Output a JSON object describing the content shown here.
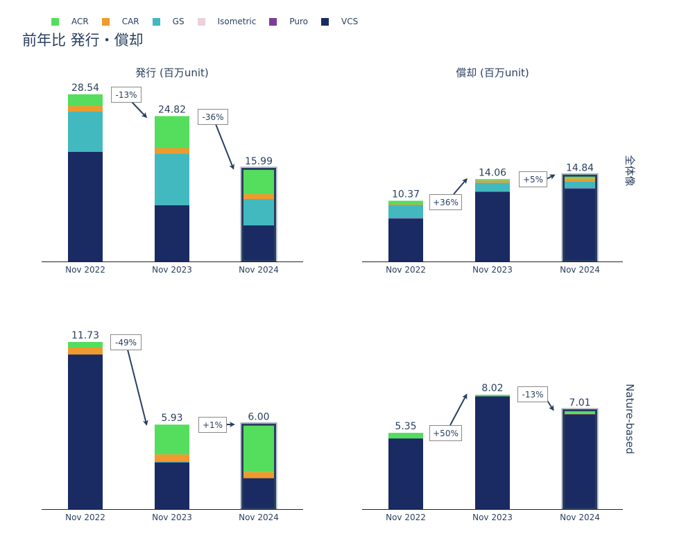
{
  "title": "前年比 発行・償却",
  "legend": [
    {
      "name": "ACR",
      "color": "#55dd5e"
    },
    {
      "name": "CAR",
      "color": "#ef9a2e"
    },
    {
      "name": "GS",
      "color": "#41b9bf"
    },
    {
      "name": "Isometric",
      "color": "#ead2da"
    },
    {
      "name": "Puro",
      "color": "#7c3d9b"
    },
    {
      "name": "VCS",
      "color": "#1a2a63"
    }
  ],
  "colors": {
    "text": "#2a3f5f",
    "axis": "#222222",
    "arrow": "#2a3f5f",
    "highlight_border": "#2a3f5f"
  },
  "chart_data": [
    {
      "type": "bar",
      "stacked": true,
      "title": "発行 (百万unit)",
      "row_label": "",
      "categories": [
        "Nov 2022",
        "Nov 2023",
        "Nov 2024"
      ],
      "totals": [
        "28.54",
        "24.82",
        "15.99"
      ],
      "changes": [
        "-13%",
        "-36%"
      ],
      "highlight": "Nov 2024",
      "series": [
        {
          "name": "VCS",
          "values": [
            18.71,
            9.62,
            6.16
          ]
        },
        {
          "name": "Puro",
          "values": [
            0,
            0,
            0
          ]
        },
        {
          "name": "Isometric",
          "values": [
            0,
            0,
            0
          ]
        },
        {
          "name": "GS",
          "values": [
            6.87,
            8.79,
            4.5
          ]
        },
        {
          "name": "CAR",
          "values": [
            0.95,
            0.95,
            0.83
          ]
        },
        {
          "name": "ACR",
          "values": [
            2.01,
            5.46,
            4.5
          ]
        }
      ]
    },
    {
      "type": "bar",
      "stacked": true,
      "title": "償却 (百万unit)",
      "row_label": "全体像",
      "categories": [
        "Nov 2022",
        "Nov 2023",
        "Nov 2024"
      ],
      "totals": [
        "10.37",
        "14.06",
        "14.84"
      ],
      "changes": [
        "+36%",
        "+5%"
      ],
      "highlight": "Nov 2024",
      "series": [
        {
          "name": "VCS",
          "values": [
            7.33,
            11.91,
            12.43
          ]
        },
        {
          "name": "Puro",
          "values": [
            0.06,
            0,
            0.06
          ]
        },
        {
          "name": "Isometric",
          "values": [
            0,
            0,
            0
          ]
        },
        {
          "name": "GS",
          "values": [
            2.26,
            1.55,
            1.21
          ]
        },
        {
          "name": "CAR",
          "values": [
            0.12,
            0.36,
            0.48
          ]
        },
        {
          "name": "ACR",
          "values": [
            0.6,
            0.24,
            0.66
          ]
        }
      ]
    },
    {
      "type": "bar",
      "stacked": true,
      "title": "",
      "row_label": "",
      "categories": [
        "Nov 2022",
        "Nov 2023",
        "Nov 2024"
      ],
      "totals": [
        "11.73",
        "5.93",
        "6.00"
      ],
      "changes": [
        "-49%",
        "+1%"
      ],
      "highlight": "Nov 2024",
      "series": [
        {
          "name": "VCS",
          "values": [
            10.85,
            3.28,
            2.17
          ]
        },
        {
          "name": "Puro",
          "values": [
            0,
            0,
            0
          ]
        },
        {
          "name": "Isometric",
          "values": [
            0,
            0,
            0
          ]
        },
        {
          "name": "GS",
          "values": [
            0,
            0.07,
            0
          ]
        },
        {
          "name": "CAR",
          "values": [
            0.49,
            0.49,
            0.44
          ]
        },
        {
          "name": "ACR",
          "values": [
            0.39,
            2.09,
            3.39
          ]
        }
      ]
    },
    {
      "type": "bar",
      "stacked": true,
      "title": "",
      "row_label": "Nature-based",
      "categories": [
        "Nov 2022",
        "Nov 2023",
        "Nov 2024"
      ],
      "totals": [
        "5.35",
        "8.02",
        "7.01"
      ],
      "changes": [
        "+50%",
        "-13%"
      ],
      "highlight": "Nov 2024",
      "series": [
        {
          "name": "VCS",
          "values": [
            4.96,
            7.92,
            6.66
          ]
        },
        {
          "name": "Puro",
          "values": [
            0,
            0,
            0
          ]
        },
        {
          "name": "Isometric",
          "values": [
            0,
            0,
            0
          ]
        },
        {
          "name": "GS",
          "values": [
            0,
            0,
            0
          ]
        },
        {
          "name": "CAR",
          "values": [
            0,
            0,
            0.06
          ]
        },
        {
          "name": "ACR",
          "values": [
            0.39,
            0.1,
            0.29
          ]
        }
      ]
    }
  ]
}
